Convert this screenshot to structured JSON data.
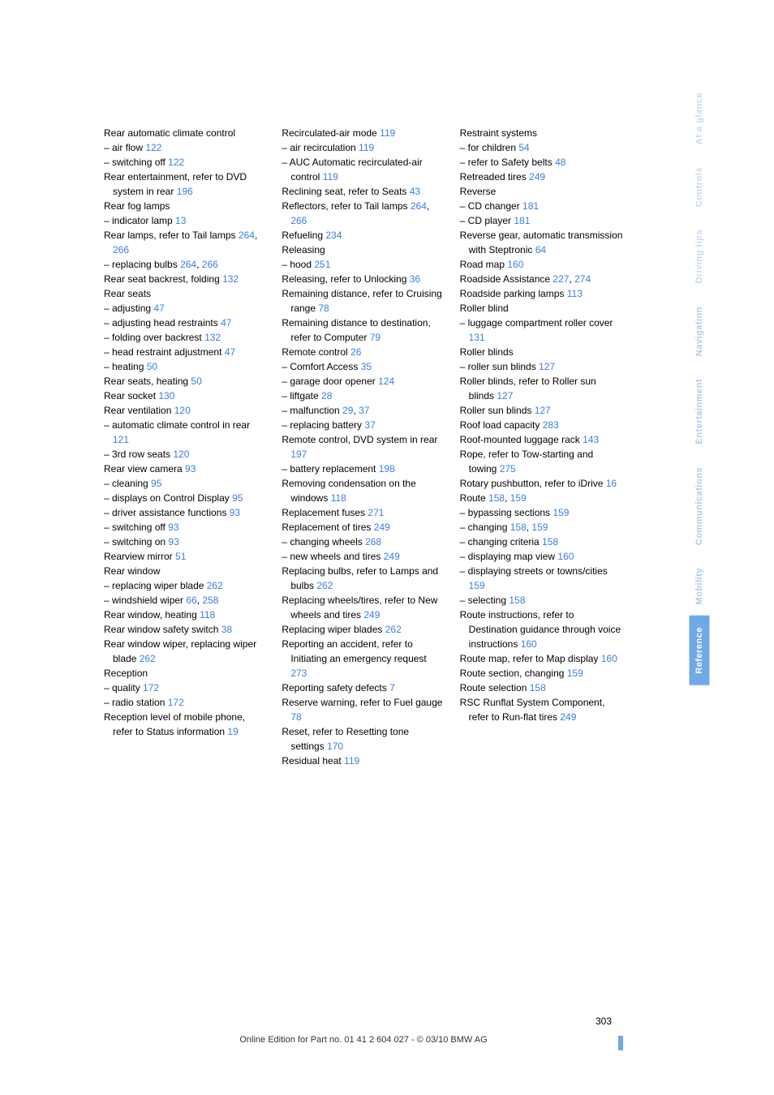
{
  "col1": [
    "Rear automatic climate control",
    "– air flow |122",
    "– switching off |122",
    "Rear entertainment, refer to DVD system in rear |196",
    "Rear fog lamps",
    "– indicator lamp |13",
    "Rear lamps, refer to Tail lamps |264|, |266",
    "– replacing bulbs |264|, |266",
    "Rear seat backrest, folding |132",
    "Rear seats",
    "– adjusting |47",
    "– adjusting head restraints |47",
    "– folding over backrest |132",
    "– head restraint adjustment |47",
    "– heating |50",
    "Rear seats, heating |50",
    "Rear socket |130",
    "Rear ventilation |120",
    "– automatic climate control in rear |121",
    "– 3rd row seats |120",
    "Rear view camera |93",
    "– cleaning |95",
    "– displays on Control Display |95",
    "– driver assistance functions |93",
    "– switching off |93",
    "– switching on |93",
    "Rearview mirror |51",
    "Rear window",
    "– replacing wiper blade |262",
    "– windshield wiper |66|, |258",
    "Rear window, heating |118",
    "Rear window safety switch |38",
    "Rear window wiper, replacing wiper blade |262",
    "Reception",
    "– quality |172",
    "– radio station |172",
    "Reception level of mobile phone, refer to Status information |19"
  ],
  "col2": [
    "Recirculated-air mode |119",
    "– air recirculation |119",
    "– AUC Automatic recirculated-air control |119",
    "Reclining seat, refer to Seats |43",
    "Reflectors, refer to Tail lamps |264|, |266",
    "Refueling |234",
    "Releasing",
    "– hood |251",
    "Releasing, refer to Unlocking |36",
    "Remaining distance, refer to Cruising range |78",
    "Remaining distance to destination, refer to Computer |79",
    "Remote control |26",
    "– Comfort Access |35",
    "– garage door opener |124",
    "– liftgate |28",
    "– malfunction |29|, |37",
    "– replacing battery |37",
    "Remote control, DVD system in rear |197",
    "– battery replacement |198",
    "Removing condensation on the windows |118",
    "Replacement fuses |271",
    "Replacement of tires |249",
    "– changing wheels |268",
    "– new wheels and tires |249",
    "Replacing bulbs, refer to Lamps and bulbs |262",
    "Replacing wheels/tires, refer to New wheels and tires |249",
    "Replacing wiper blades |262",
    "Reporting an accident, refer to Initiating an emergency request |273",
    "Reporting safety defects |7",
    "Reserve warning, refer to Fuel gauge |78",
    "Reset, refer to Resetting tone settings |170",
    "Residual heat |119"
  ],
  "col3": [
    "Restraint systems",
    "– for children |54",
    "– refer to Safety belts |48",
    "Retreaded tires |249",
    "Reverse",
    "– CD changer |181",
    "– CD player |181",
    "Reverse gear, automatic transmission with Steptronic |64",
    "Road map |160",
    "Roadside Assistance |227|, |274",
    "Roadside parking lamps |113",
    "Roller blind",
    "– luggage compartment roller cover |131",
    "Roller blinds",
    "– roller sun blinds |127",
    "Roller blinds, refer to Roller sun blinds |127",
    "Roller sun blinds |127",
    "Roof load capacity |283",
    "Roof-mounted luggage rack |143",
    "Rope, refer to Tow-starting and towing |275",
    "Rotary pushbutton, refer to iDrive |16",
    "Route |158|, |159",
    "– bypassing sections |159",
    "– changing |158|, |159",
    "– changing criteria |158",
    "– displaying map view |160",
    "– displaying streets or towns/cities |159",
    "– selecting |158",
    "Route instructions, refer to Destination guidance through voice instructions |160",
    "Route map, refer to Map display |160",
    "Route section, changing |159",
    "Route selection |158",
    "RSC Runflat System Component, refer to Run-flat tires |249"
  ],
  "tabs": [
    {
      "label": "At a glance",
      "cls": "tab-light"
    },
    {
      "label": "Controls",
      "cls": "tab-light"
    },
    {
      "label": "Driving tips",
      "cls": "tab-light"
    },
    {
      "label": "Navigation",
      "cls": "tab-mid"
    },
    {
      "label": "Entertainment",
      "cls": "tab-mid"
    },
    {
      "label": "Communications",
      "cls": "tab-mid"
    },
    {
      "label": "Mobility",
      "cls": "tab-mid"
    },
    {
      "label": "Reference",
      "cls": "tab-blue"
    }
  ],
  "pagenum": "303",
  "footer": "Online Edition for Part no. 01 41 2 604 027 - © 03/10 BMW AG"
}
